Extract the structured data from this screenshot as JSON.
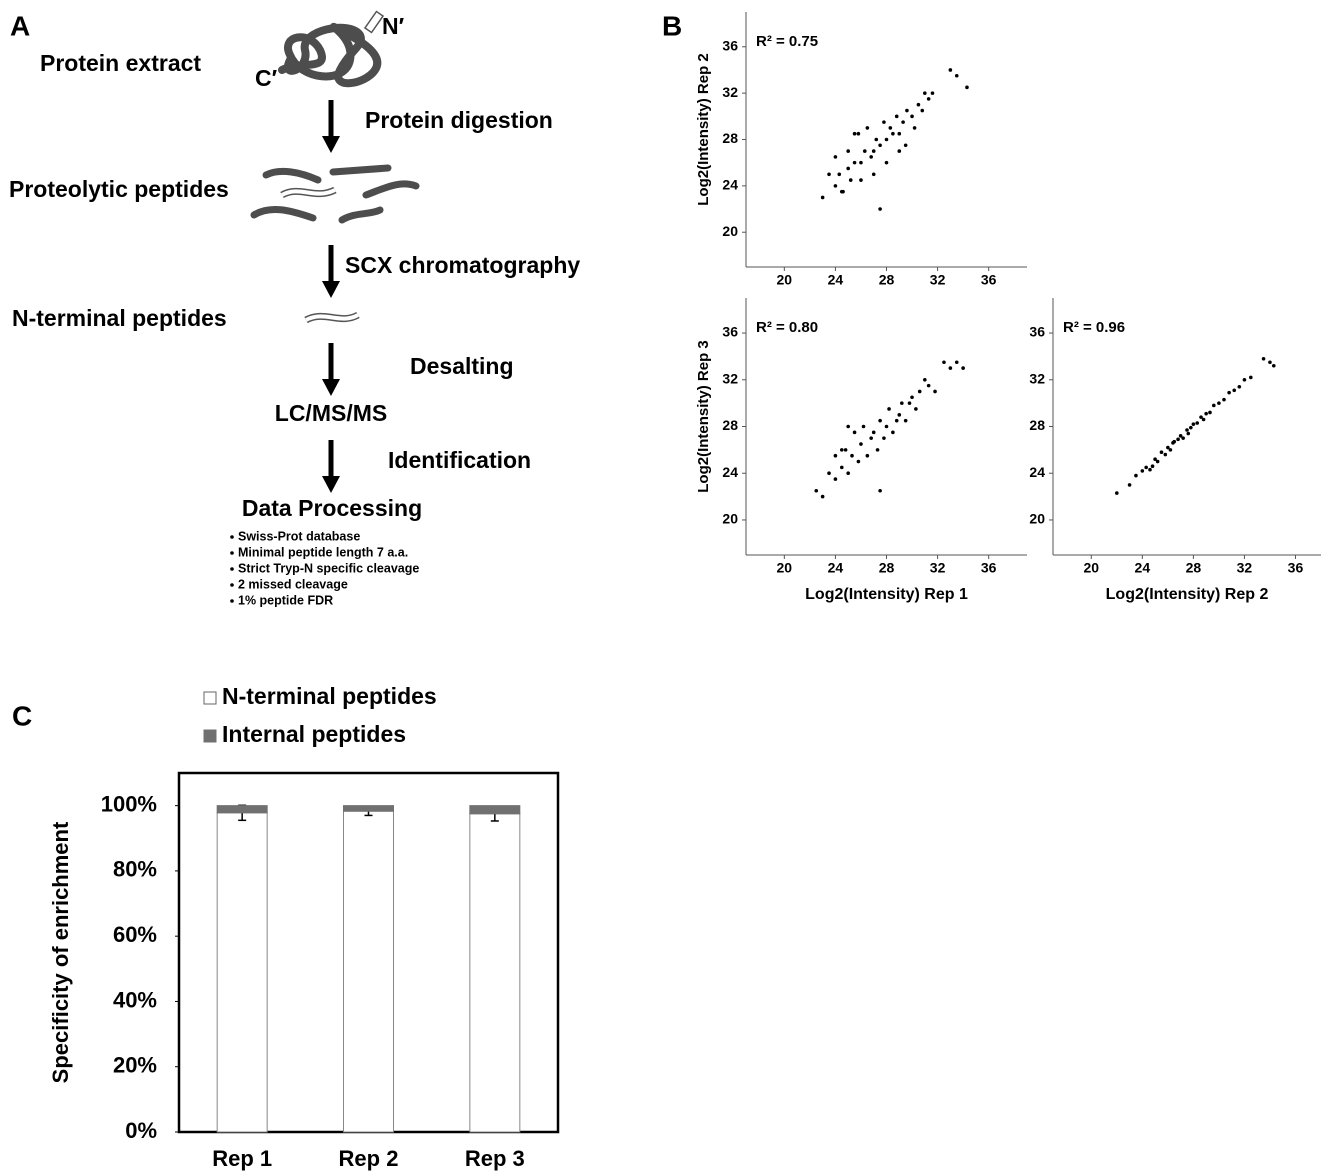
{
  "panels": [
    "A",
    "B",
    "C"
  ],
  "diagram": {
    "termini": [
      "N′",
      "C′"
    ],
    "steps": [
      "Protein extract",
      "Proteolytic peptides",
      "N-terminal peptides",
      "LC/MS/MS",
      "Data Processing"
    ],
    "methods": [
      "Protein digestion",
      "SCX chromatography",
      "Desalting",
      "Identification"
    ],
    "settings": [
      "Swiss-Prot database",
      "Minimal peptide length 7 a.a.",
      "Strict Tryp-N specific cleavage",
      "2 missed cleavage",
      "1% peptide FDR"
    ]
  },
  "chart_data": [
    {
      "type": "scatter",
      "annotation": "R² = 0.75",
      "y_label": "Log2(Intensity) Rep 2",
      "xlim": [
        17,
        39
      ],
      "ylim": [
        17,
        39
      ],
      "xticks": [
        20,
        24,
        28,
        32,
        36
      ],
      "yticks": [
        20,
        24,
        28,
        32,
        36
      ],
      "color": "#000000",
      "x": [
        23,
        23.5,
        24,
        24,
        24.3,
        24.6,
        25,
        25,
        25.2,
        25.5,
        25.8,
        26,
        26,
        26.3,
        26.5,
        26.8,
        27,
        27,
        27.2,
        27.5,
        27.8,
        28,
        28,
        28.3,
        28.5,
        28.8,
        29,
        29,
        29.3,
        29.6,
        30,
        30.2,
        30.5,
        30.8,
        31,
        31.3,
        31.6,
        33,
        33.5,
        34.3,
        27.5,
        25.5,
        24.5,
        29.5
      ],
      "y": [
        23,
        25,
        24,
        26.5,
        25,
        23.5,
        25.5,
        27,
        24.5,
        26,
        28.5,
        26,
        24.5,
        27,
        29,
        26.5,
        27,
        25,
        28,
        27.5,
        29.5,
        28,
        26,
        29,
        28.5,
        30,
        28.5,
        27,
        29.5,
        30.5,
        30,
        29,
        31,
        30.5,
        32,
        31.5,
        32,
        34,
        33.5,
        32.5,
        22,
        28.5,
        23.5,
        27.5
      ]
    },
    {
      "type": "scatter",
      "annotation": "R² = 0.80",
      "x_label": "Log2(Intensity) Rep 1",
      "y_label": "Log2(Intensity) Rep 3",
      "xlim": [
        17,
        39
      ],
      "ylim": [
        17,
        39
      ],
      "xticks": [
        20,
        24,
        28,
        32,
        36
      ],
      "yticks": [
        20,
        24,
        28,
        32,
        36
      ],
      "color": "#000000",
      "x": [
        22.5,
        23,
        23.5,
        24,
        24,
        24.5,
        24.8,
        25,
        25.3,
        25.5,
        25.8,
        26,
        26.2,
        26.5,
        26.8,
        27,
        27.3,
        27.5,
        27.8,
        28,
        28.2,
        28.5,
        28.8,
        29,
        29.2,
        29.5,
        29.8,
        30,
        30.3,
        30.6,
        31,
        31.3,
        31.8,
        32.5,
        33,
        33.5,
        34,
        25,
        27.5,
        24.5
      ],
      "y": [
        22.5,
        22,
        24,
        23.5,
        25.5,
        24.5,
        26,
        24,
        25.5,
        27.5,
        25,
        26.5,
        28,
        25.5,
        27,
        27.5,
        26,
        28.5,
        27,
        28,
        29.5,
        27.5,
        28.5,
        29,
        30,
        28.5,
        30,
        30.5,
        29.5,
        31,
        32,
        31.5,
        31,
        33.5,
        33,
        33.5,
        33,
        28,
        22.5,
        26
      ]
    },
    {
      "type": "scatter",
      "annotation": "R² = 0.96",
      "x_label": "Log2(Intensity) Rep 2",
      "xlim": [
        17,
        38
      ],
      "ylim": [
        17,
        39
      ],
      "xticks": [
        20,
        24,
        28,
        32,
        36
      ],
      "yticks": [
        20,
        24,
        28,
        32,
        36
      ],
      "color": "#000000",
      "x": [
        22,
        23,
        23.5,
        24,
        24.3,
        24.6,
        25,
        25.2,
        25.5,
        25.8,
        26,
        26.2,
        26.5,
        26.8,
        27,
        27.2,
        27.5,
        27.8,
        28,
        28.3,
        28.6,
        29,
        29.3,
        29.6,
        30,
        30.4,
        30.8,
        31.2,
        31.6,
        32,
        32.5,
        33.5,
        34,
        34.3,
        24.8,
        26.4,
        27.6,
        28.8
      ],
      "y": [
        22.3,
        23,
        23.8,
        24.2,
        24.5,
        24.3,
        25.2,
        25,
        25.8,
        25.6,
        26.2,
        26,
        26.7,
        26.9,
        27.2,
        27,
        27.7,
        27.9,
        28.2,
        28.3,
        28.8,
        29.1,
        29.2,
        29.8,
        30,
        30.3,
        30.9,
        31.1,
        31.4,
        32,
        32.2,
        33.8,
        33.5,
        33.2,
        24.6,
        26.6,
        27.4,
        28.6
      ]
    },
    {
      "type": "stacked_bar",
      "y_label": "Specificity of enrichment",
      "categories": [
        "Rep 1",
        "Rep 2",
        "Rep 3"
      ],
      "series": [
        {
          "name": "N-terminal peptides",
          "color": "#ffffff",
          "values": [
            97.8,
            98.3,
            97.5
          ],
          "errors": [
            2.3,
            1.3,
            2.2
          ]
        },
        {
          "name": "Internal peptides",
          "color": "#707070",
          "values": [
            2.2,
            1.7,
            2.5
          ]
        }
      ],
      "ylim": [
        0,
        110
      ],
      "yticks": [
        {
          "value": 0,
          "label": "0%"
        },
        {
          "value": 20,
          "label": "20%"
        },
        {
          "value": 40,
          "label": "40%"
        },
        {
          "value": 60,
          "label": "60%"
        },
        {
          "value": 80,
          "label": "80%"
        },
        {
          "value": 100,
          "label": "100%"
        }
      ]
    }
  ]
}
